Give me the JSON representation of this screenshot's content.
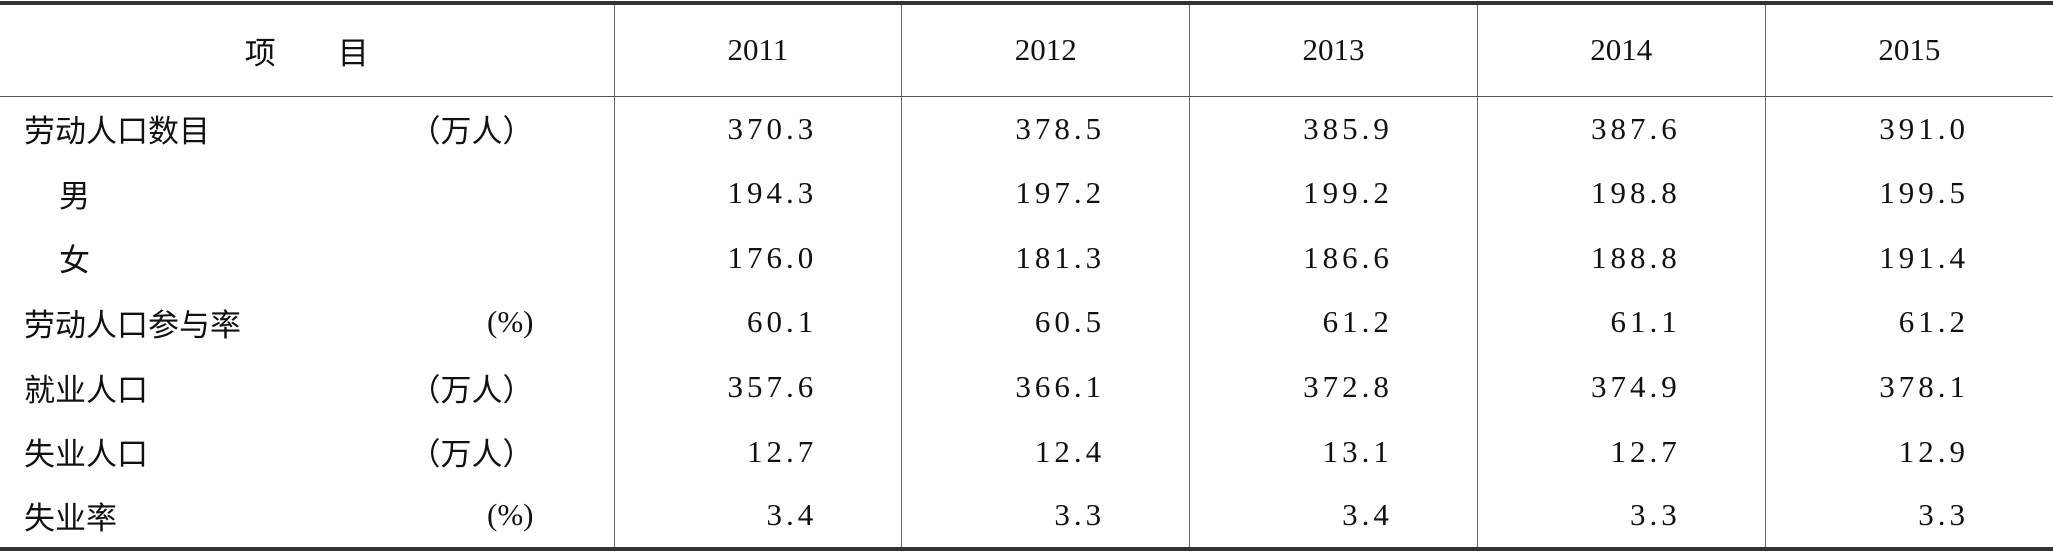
{
  "table": {
    "header": {
      "item": "项　　目",
      "years": [
        "2011",
        "2012",
        "2013",
        "2014",
        "2015"
      ]
    },
    "rows": [
      {
        "label": "劳动人口数目",
        "unit": "（万人）",
        "values": [
          "370.3",
          "378.5",
          "385.9",
          "387.6",
          "391.0"
        ]
      },
      {
        "label": "男",
        "values": [
          "194.3",
          "197.2",
          "199.2",
          "198.8",
          "199.5"
        ]
      },
      {
        "label": "女",
        "values": [
          "176.0",
          "181.3",
          "186.6",
          "188.8",
          "191.4"
        ]
      },
      {
        "label": "劳动人口参与率",
        "unit": "(%)",
        "values": [
          "60.1",
          "60.5",
          "61.2",
          "61.1",
          "61.2"
        ]
      },
      {
        "label": "就业人口",
        "unit": "（万人）",
        "values": [
          "357.6",
          "366.1",
          "372.8",
          "374.9",
          "378.1"
        ]
      },
      {
        "label": "失业人口",
        "unit": "（万人）",
        "values": [
          "12.7",
          "12.4",
          "13.1",
          "12.7",
          "12.9"
        ]
      },
      {
        "label": "失业率",
        "unit": "(%)",
        "values": [
          "3.4",
          "3.3",
          "3.4",
          "3.3",
          "3.3"
        ]
      }
    ]
  }
}
